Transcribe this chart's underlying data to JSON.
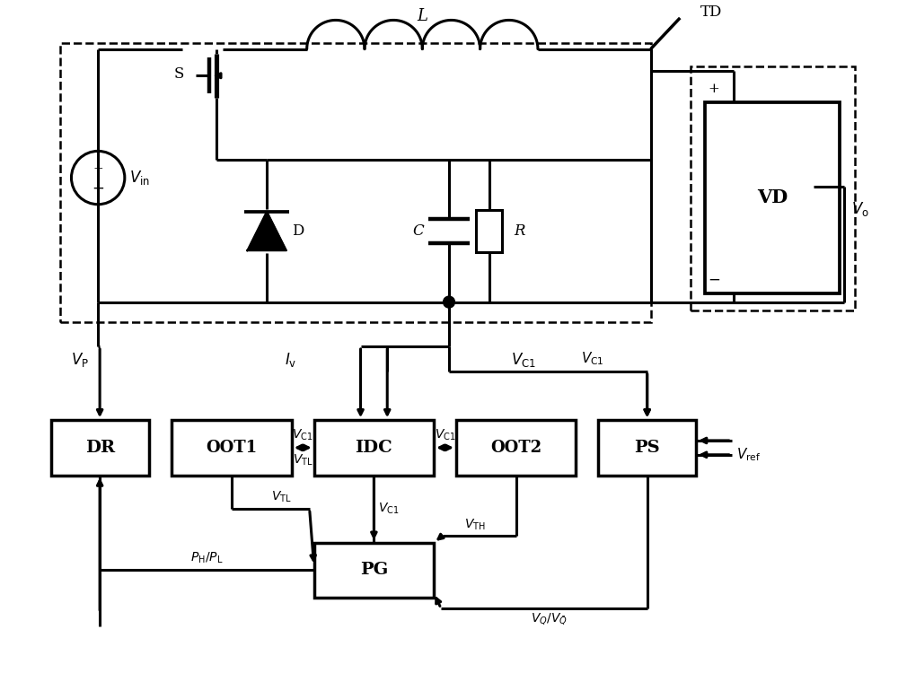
{
  "bg_color": "#ffffff",
  "line_color": "#000000",
  "lw": 2.2,
  "lw_thin": 1.5,
  "figsize": [
    10,
    7.5
  ],
  "dpi": 100,
  "xlim": [
    0,
    10
  ],
  "ylim": [
    0,
    7.5
  ]
}
